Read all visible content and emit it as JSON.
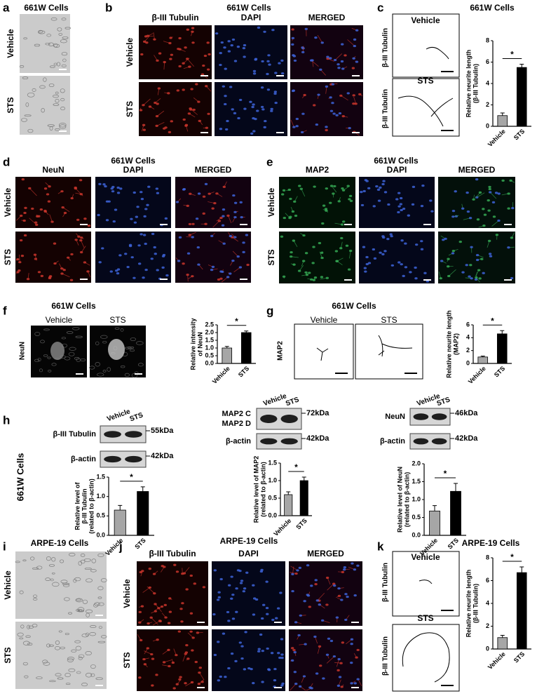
{
  "panels": {
    "a": {
      "label": "a",
      "title": "661W Cells",
      "rows": [
        "Vehicle",
        "STS"
      ]
    },
    "b": {
      "label": "b",
      "title": "661W Cells",
      "columns": [
        "β-III Tubulin",
        "DAPI",
        "MERGED"
      ],
      "rows": [
        "Vehicle",
        "STS"
      ]
    },
    "c": {
      "label": "c",
      "title": "661W Cells",
      "images": [
        "Vehicle",
        "STS"
      ],
      "side": [
        "β-III Tubulin",
        "β-III Tubulin"
      ]
    },
    "d": {
      "label": "d",
      "title": "661W Cells",
      "columns": [
        "NeuN",
        "DAPI",
        "MERGED"
      ],
      "rows": [
        "Vehicle",
        "STS"
      ]
    },
    "e": {
      "label": "e",
      "title": "661W Cells",
      "columns": [
        "MAP2",
        "DAPI",
        "MERGED"
      ],
      "rows": [
        "Vehicle",
        "STS"
      ]
    },
    "f": {
      "label": "f",
      "title": "661W Cells",
      "images": [
        "Vehicle",
        "STS"
      ],
      "side": [
        "NeuN"
      ]
    },
    "g": {
      "label": "g",
      "title": "661W Cells",
      "images": [
        "Vehicle",
        "STS"
      ],
      "side": [
        "MAP2"
      ]
    },
    "h": {
      "label": "h",
      "side": "661W Cells",
      "blots": [
        {
          "lanes": [
            "Vehicle",
            "STS"
          ],
          "bands": [
            {
              "names": [
                "β-III Tubulin"
              ],
              "size": "55kDa"
            },
            {
              "names": [
                "β-actin"
              ],
              "size": "42kDa"
            }
          ]
        },
        {
          "lanes": [
            "Vehicle",
            "STS"
          ],
          "bands": [
            {
              "names": [
                "MAP2 C",
                "MAP2 D"
              ],
              "size": "72kDa"
            },
            {
              "names": [
                "β-actin"
              ],
              "size": "42kDa"
            }
          ]
        },
        {
          "lanes": [
            "Vehicle",
            "STS"
          ],
          "bands": [
            {
              "names": [
                "NeuN"
              ],
              "size": "46kDa"
            },
            {
              "names": [
                "β-actin"
              ],
              "size": "42kDa"
            }
          ]
        }
      ]
    },
    "i": {
      "label": "i",
      "title": "ARPE-19 Cells",
      "rows": [
        "Vehicle",
        "STS"
      ]
    },
    "j": {
      "label": "j",
      "title": "ARPE-19 Cells",
      "columns": [
        "β-III Tubulin",
        "DAPI",
        "MERGED"
      ],
      "rows": [
        "Vehicle",
        "STS"
      ]
    },
    "k": {
      "label": "k",
      "title": "ARPE-19 Cells",
      "images": [
        "Vehicle",
        "STS"
      ],
      "side": [
        "β-III Tubulin",
        "β-III Tubulin"
      ]
    }
  },
  "chart_data": [
    {
      "type": "bar",
      "ylabel": [
        "Relative neurite length",
        "(β-III Tubulin)"
      ],
      "categories": [
        "Vehicle",
        "STS"
      ],
      "values": [
        1.0,
        5.5
      ],
      "errors": [
        0.25,
        0.3
      ],
      "colors": [
        "#a6a6a6",
        "#000000"
      ],
      "ylim": [
        0,
        8
      ],
      "yticks": [
        0,
        2,
        4,
        6,
        8
      ],
      "significance": "*"
    },
    {
      "type": "bar",
      "ylabel": [
        "Relative intensity",
        "of NeuN"
      ],
      "categories": [
        "Vehicle",
        "STS"
      ],
      "values": [
        1.0,
        2.0
      ],
      "errors": [
        0.1,
        0.1
      ],
      "colors": [
        "#a6a6a6",
        "#000000"
      ],
      "ylim": [
        0,
        2.5
      ],
      "yticks": [
        {
          "value": 0,
          "label": "0.0"
        },
        0.5,
        {
          "value": 1,
          "label": "1.0"
        },
        1.5,
        {
          "value": 2,
          "label": "2.0"
        },
        2.5
      ],
      "significance": "*"
    },
    {
      "type": "bar",
      "ylabel": [
        "Relative neurite length",
        "(MAP2)"
      ],
      "categories": [
        "Vehicle",
        "STS"
      ],
      "values": [
        1.0,
        4.6
      ],
      "errors": [
        0.15,
        0.5
      ],
      "colors": [
        "#a6a6a6",
        "#000000"
      ],
      "ylim": [
        0,
        6
      ],
      "yticks": [
        0,
        2,
        4,
        6
      ],
      "significance": "*"
    },
    {
      "type": "bar",
      "ylabel": [
        "Relative level of",
        "β-III Tubulin",
        "(related to β-actin)"
      ],
      "categories": [
        "Vehicle",
        "STS"
      ],
      "values": [
        0.65,
        1.13
      ],
      "errors": [
        0.12,
        0.12
      ],
      "colors": [
        "#a6a6a6",
        "#000000"
      ],
      "ylim": [
        0,
        1.5
      ],
      "yticks": [
        {
          "value": 0,
          "label": "0.0"
        },
        0.5,
        {
          "value": 1,
          "label": "1.0"
        },
        1.5
      ],
      "significance": "*"
    },
    {
      "type": "bar",
      "ylabel": [
        "Relative level of MAP2",
        "(related to β-actin)"
      ],
      "categories": [
        "Vehicle",
        "STS"
      ],
      "values": [
        0.6,
        1.0
      ],
      "errors": [
        0.08,
        0.1
      ],
      "colors": [
        "#a6a6a6",
        "#000000"
      ],
      "ylim": [
        0,
        1.5
      ],
      "yticks": [
        {
          "value": 0,
          "label": "0.0"
        },
        0.5,
        {
          "value": 1,
          "label": "1.0"
        },
        1.5
      ],
      "significance": "*"
    },
    {
      "type": "bar",
      "ylabel": [
        "Relative level of NeuN",
        "(related to β-actin)"
      ],
      "categories": [
        "Vehicle",
        "STS"
      ],
      "values": [
        0.68,
        1.23
      ],
      "errors": [
        0.15,
        0.22
      ],
      "colors": [
        "#a6a6a6",
        "#000000"
      ],
      "ylim": [
        0,
        2.0
      ],
      "yticks": [
        {
          "value": 0,
          "label": "0.0"
        },
        0.5,
        {
          "value": 1,
          "label": "1.0"
        },
        1.5,
        {
          "value": 2,
          "label": "2.0"
        }
      ],
      "significance": "*"
    },
    {
      "type": "bar",
      "ylabel": [
        "Relative neurite length",
        "(β-III Tubulin)"
      ],
      "categories": [
        "Vehicle",
        "STS"
      ],
      "values": [
        1.0,
        6.7
      ],
      "errors": [
        0.2,
        0.5
      ],
      "colors": [
        "#a6a6a6",
        "#000000"
      ],
      "ylim": [
        0,
        8
      ],
      "yticks": [
        0,
        2,
        4,
        6,
        8
      ],
      "significance": "*"
    }
  ]
}
